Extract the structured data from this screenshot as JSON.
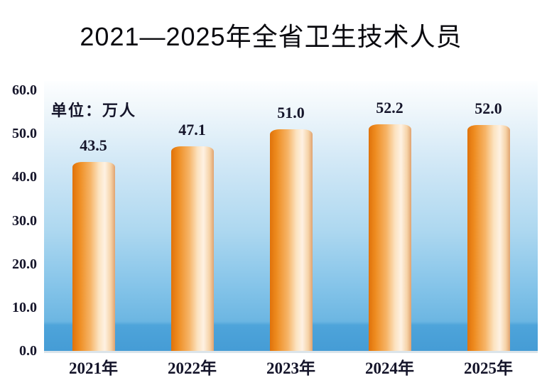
{
  "chart_data": {
    "type": "bar",
    "title": "2021—2025年全省卫生技术人员",
    "unit_label": "单位：万人",
    "categories": [
      "2021年",
      "2022年",
      "2023年",
      "2024年",
      "2025年"
    ],
    "values": [
      43.5,
      47.1,
      51.0,
      52.2,
      52.0
    ],
    "value_labels": [
      "43.5",
      "47.1",
      "51.0",
      "52.2",
      "52.0"
    ],
    "y_ticks": [
      "60.0",
      "50.0",
      "40.0",
      "30.0",
      "20.0",
      "10.0",
      "0.0"
    ],
    "ylim": [
      0,
      60
    ],
    "xlabel": "",
    "ylabel": "",
    "grid": false,
    "legend": "none",
    "colors": {
      "bar_gradient": "linear-gradient(90deg,#e0720a 0%,#ee8c20 16%,#f6b467 42%,#fce3c0 62%,#fef1e2 76%,#f6d3a8 90%,#e0a370 100%)",
      "plot_gradient": "linear-gradient(180deg,#fdfeff 0%,#f0f7fb 10%,#d2e8f6 30%,#aed8f0 55%,#85c4e9 76%,#6cb6e2 89%,#4ea4da 90.5%,#459cd5 100%)",
      "label_color": "#15152a",
      "title_color": "#0a0a0f"
    }
  }
}
